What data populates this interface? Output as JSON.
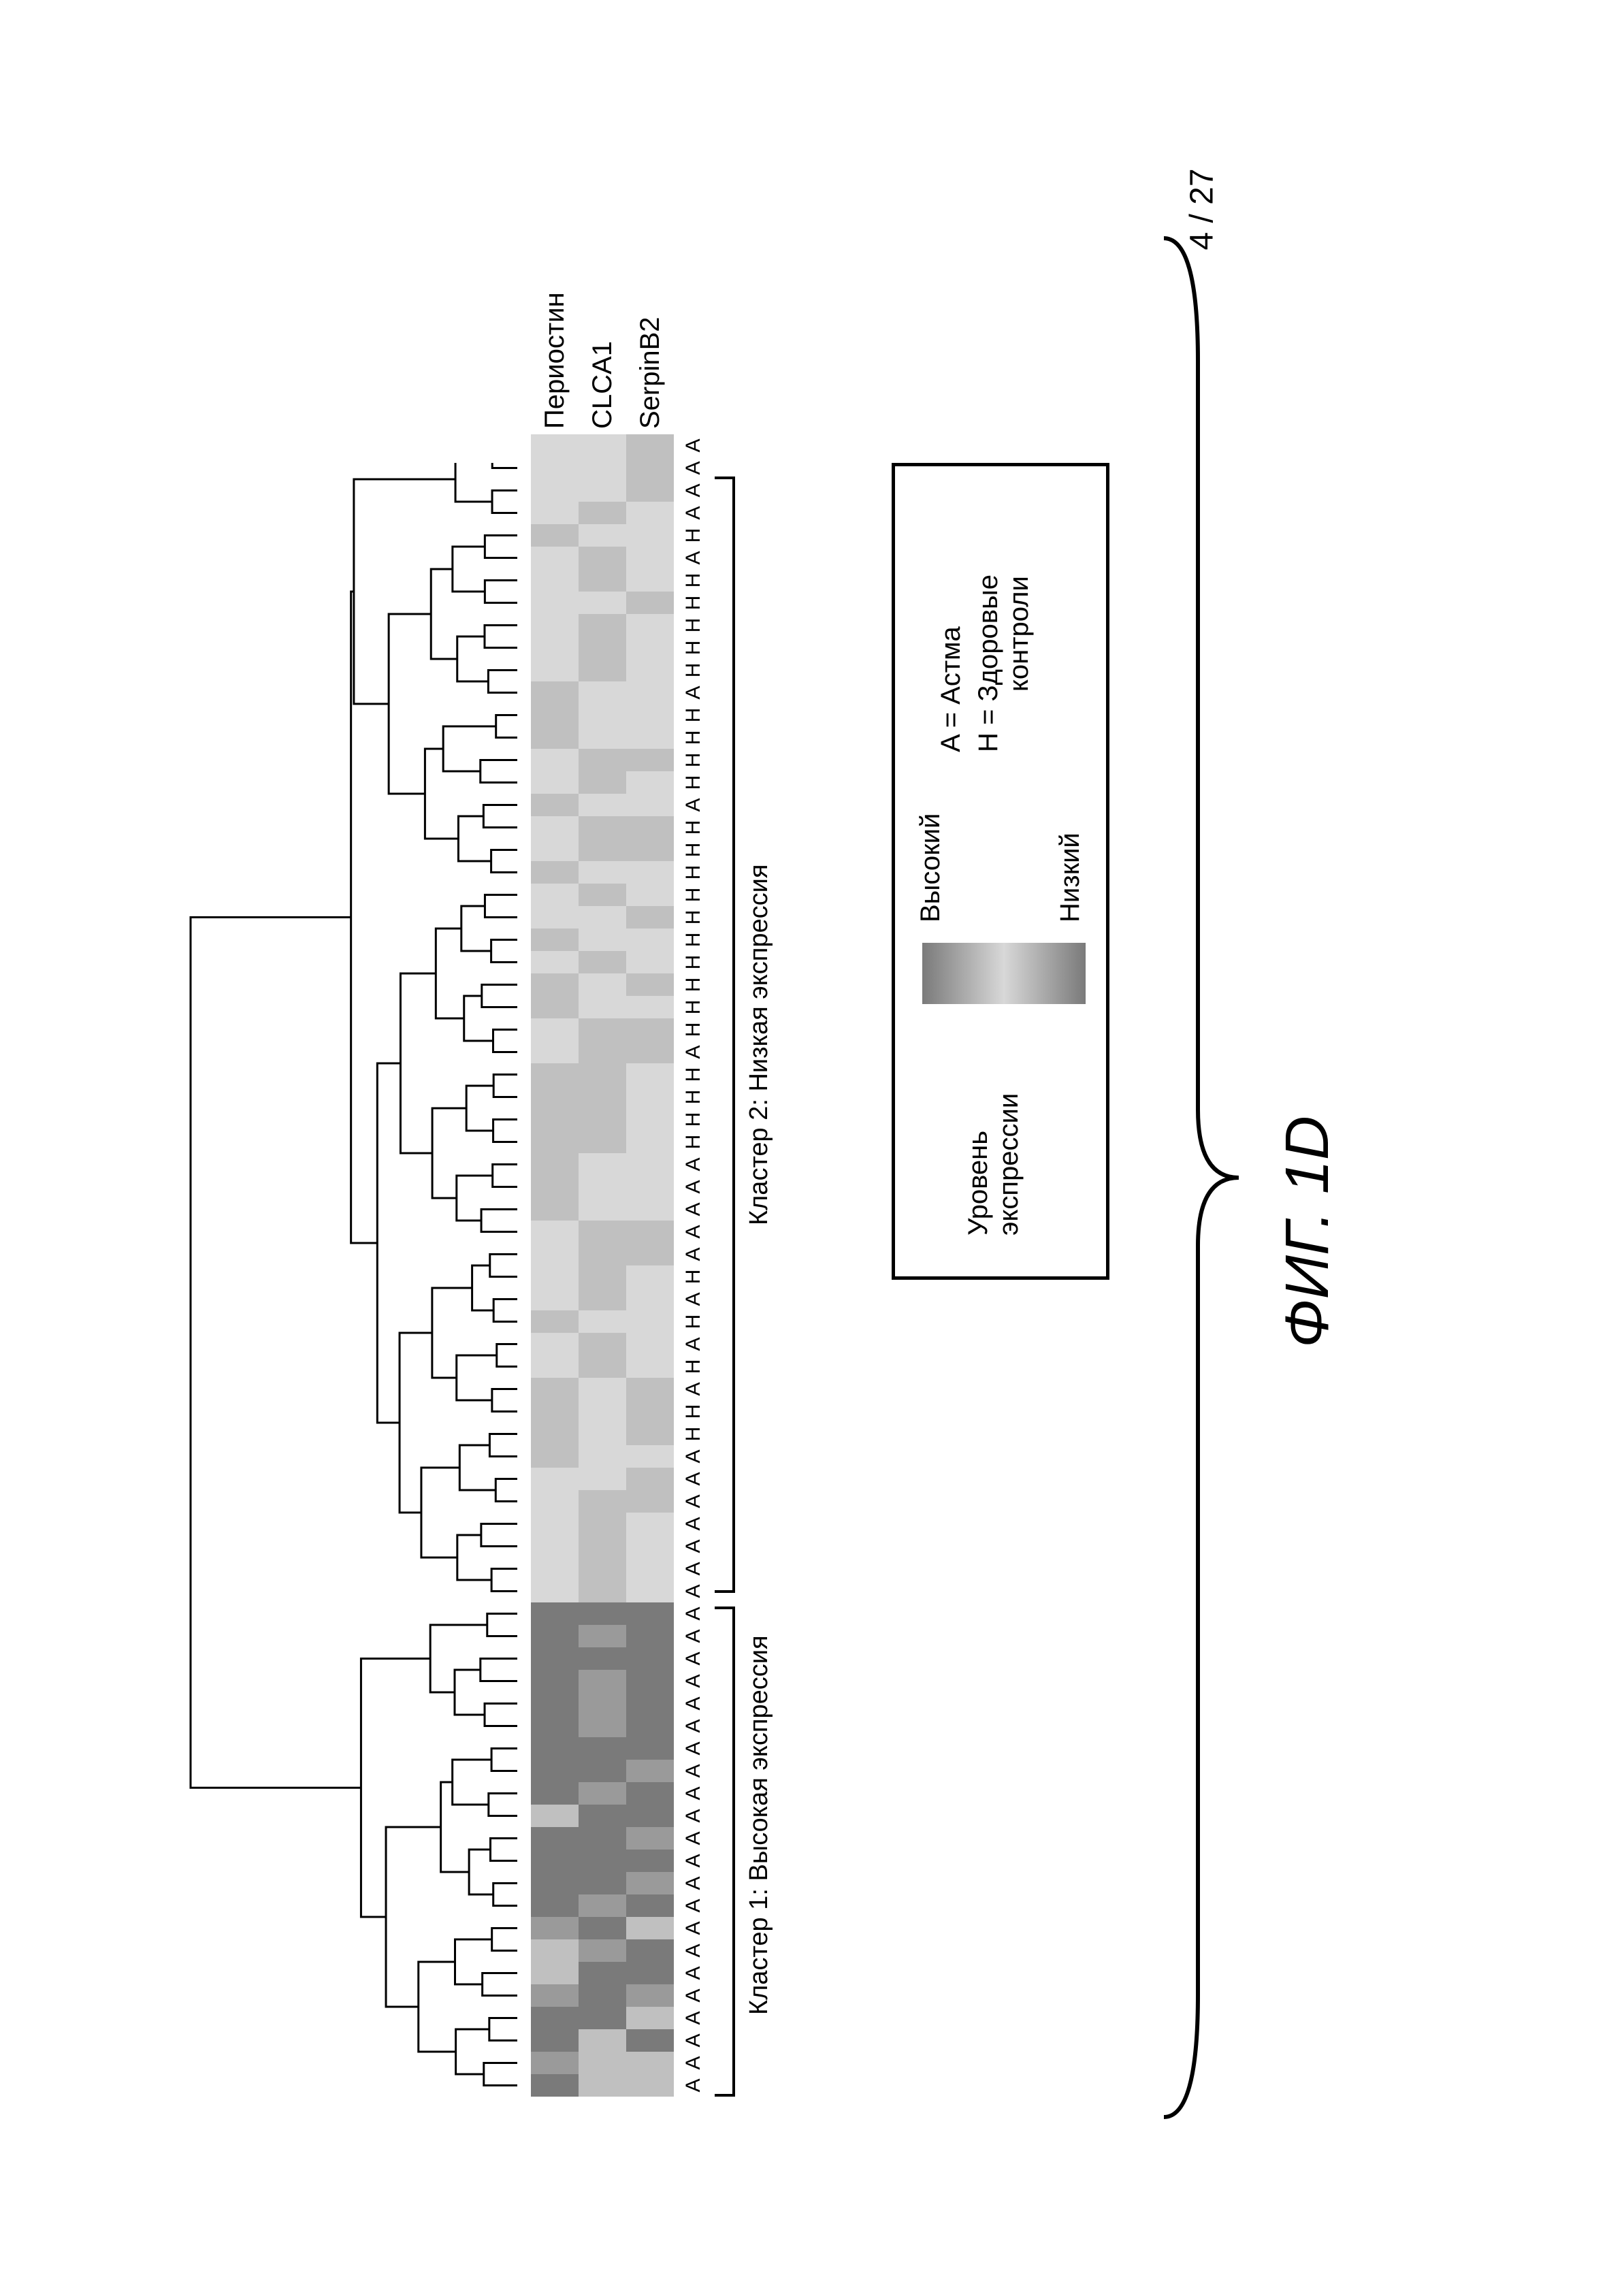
{
  "page_number": "4 / 27",
  "figure_label": "ФИГ. 1D",
  "row_labels": [
    "Периостин",
    "CLCA1",
    "SerpinB2"
  ],
  "cluster1_label": "Кластер 1: Высокая экспрессия",
  "cluster2_label": "Кластер 2: Низкая экспрессия",
  "legend": {
    "level_label": "Уровень\nэкспрессии",
    "high_label": "Высокий",
    "low_label": "Низкий",
    "key_a": "A = Астма",
    "key_h": "H = Здоровые\n        контроли"
  },
  "colors": {
    "high": "#7a7a7a",
    "mid_high": "#9a9a9a",
    "mid": "#c0c0c0",
    "mid_low": "#d8d8d8",
    "low": "#efefef",
    "bg": "#ffffff",
    "border": "#000000"
  },
  "cluster1_count": 22,
  "cluster2_count": 50,
  "samples": [
    "A",
    "A",
    "A",
    "A",
    "A",
    "A",
    "A",
    "A",
    "A",
    "A",
    "A",
    "A",
    "A",
    "A",
    "A",
    "A",
    "A",
    "A",
    "A",
    "A",
    "A",
    "A",
    "A",
    "A",
    "A",
    "A",
    "A",
    "A",
    "A",
    "H",
    "H",
    "A",
    "H",
    "A",
    "H",
    "A",
    "H",
    "A",
    "A",
    "A",
    "A",
    "A",
    "H",
    "H",
    "H",
    "H",
    "A",
    "H",
    "H",
    "H",
    "H",
    "H",
    "H",
    "H",
    "H",
    "H",
    "H",
    "A",
    "H",
    "H",
    "H",
    "H",
    "A",
    "H",
    "H",
    "H",
    "H",
    "H",
    "A",
    "H",
    "A",
    "A",
    "A",
    "A"
  ],
  "heatmap_rows": [
    [
      5,
      4,
      5,
      5,
      4,
      3,
      3,
      4,
      5,
      5,
      5,
      5,
      3,
      5,
      5,
      5,
      5,
      5,
      5,
      5,
      5,
      5,
      2,
      2,
      2,
      2,
      2,
      2,
      3,
      3,
      3,
      3,
      2,
      2,
      3,
      2,
      2,
      2,
      2,
      3,
      3,
      3,
      3,
      3,
      3,
      3,
      2,
      2,
      3,
      3,
      2,
      3,
      2,
      2,
      3,
      2,
      2,
      3,
      2,
      2,
      3,
      3,
      3,
      2,
      2,
      2,
      2,
      2,
      2,
      3,
      2,
      2,
      2,
      2
    ],
    [
      3,
      3,
      3,
      5,
      5,
      5,
      4,
      5,
      4,
      5,
      5,
      5,
      5,
      4,
      5,
      5,
      4,
      4,
      4,
      5,
      4,
      5,
      3,
      3,
      3,
      3,
      3,
      2,
      2,
      2,
      2,
      2,
      3,
      3,
      2,
      3,
      3,
      3,
      3,
      2,
      2,
      2,
      3,
      3,
      3,
      3,
      3,
      3,
      2,
      2,
      3,
      2,
      2,
      3,
      2,
      3,
      3,
      2,
      3,
      3,
      2,
      2,
      2,
      3,
      3,
      3,
      2,
      3,
      3,
      2,
      3,
      2,
      2,
      2
    ],
    [
      3,
      3,
      5,
      3,
      4,
      5,
      5,
      3,
      5,
      4,
      5,
      4,
      5,
      5,
      4,
      5,
      5,
      5,
      5,
      5,
      5,
      5,
      2,
      2,
      2,
      2,
      3,
      3,
      2,
      3,
      3,
      3,
      2,
      2,
      2,
      2,
      2,
      3,
      3,
      2,
      2,
      2,
      2,
      2,
      2,
      2,
      3,
      3,
      2,
      3,
      2,
      2,
      3,
      2,
      2,
      3,
      3,
      2,
      2,
      3,
      2,
      2,
      2,
      2,
      2,
      2,
      3,
      2,
      2,
      2,
      2,
      3,
      3,
      3
    ]
  ],
  "dendro_structure": "hierarchical",
  "font_family": "Arial",
  "label_fontsize": 40,
  "sample_fontsize": 30,
  "figlabel_fontsize": 90
}
